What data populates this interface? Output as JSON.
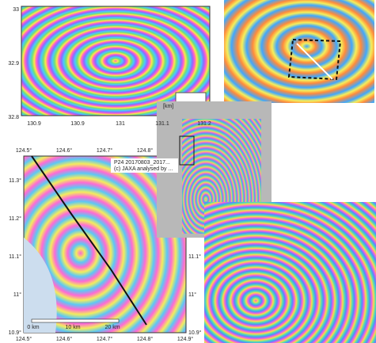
{
  "top_left": {
    "y_labels": [
      "33",
      "32.9",
      "32.8"
    ],
    "x_labels": [
      "130.9",
      "130.9",
      "131",
      "131.1",
      "131.2"
    ]
  },
  "center": {
    "unit": "[km]"
  },
  "bottom_left": {
    "top_labels": [
      "124.5°",
      "124.6°",
      "124.7°",
      "124.8°"
    ],
    "left_labels": [
      "11.3°",
      "11.2°",
      "11.1°",
      "11°",
      "10.9°"
    ],
    "right_labels": [
      "11.1°",
      "11°",
      "10.9°"
    ],
    "bottom_labels": [
      "124.5°",
      "124.6°",
      "124.7°",
      "124.8°",
      "124.9°"
    ],
    "scale_labels": [
      "0 km",
      "10 km",
      "20 km"
    ],
    "caption_lines": [
      "P24 20170803_2017...",
      "(c) JAXA analysed by ..."
    ]
  }
}
